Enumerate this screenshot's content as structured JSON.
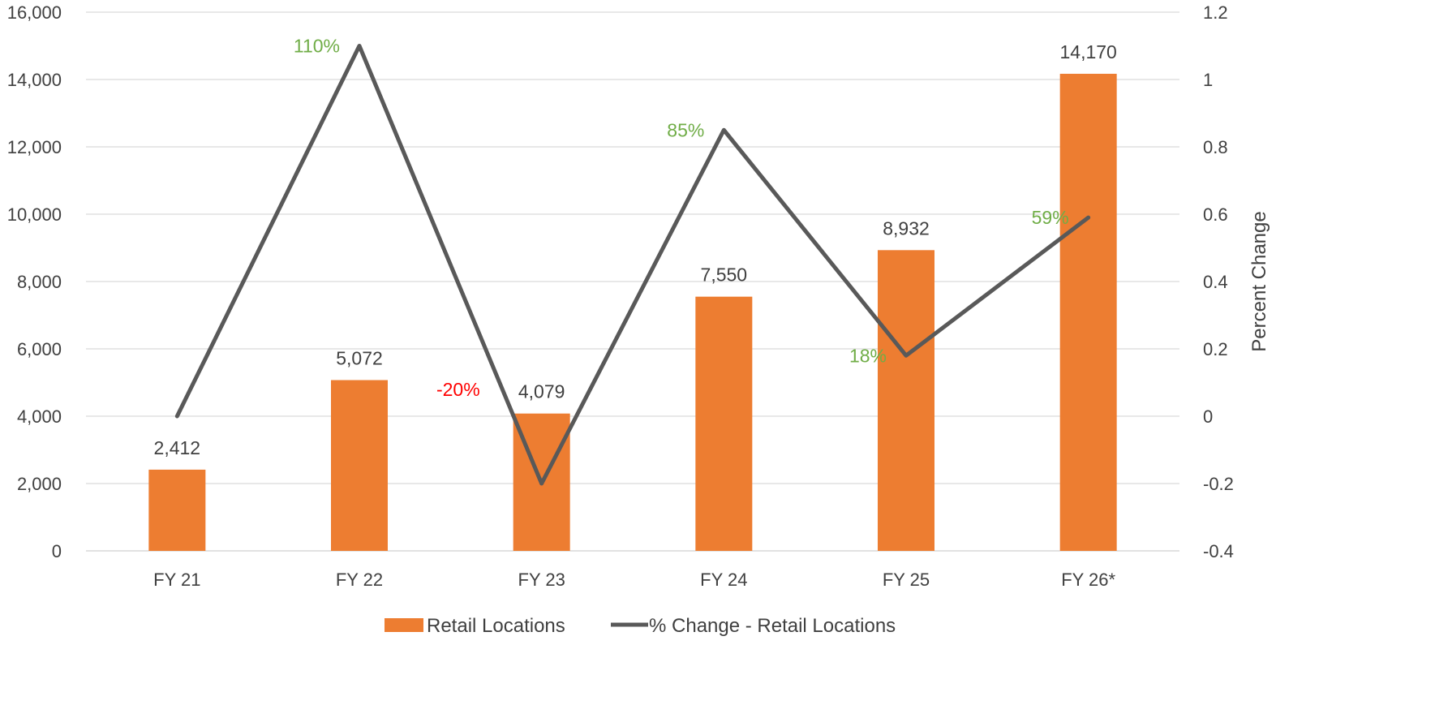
{
  "chart_data": {
    "type": "bar+line",
    "categories": [
      "FY 21",
      "FY 22",
      "FY 23",
      "FY 24",
      "FY 25",
      "FY 26*"
    ],
    "series": [
      {
        "name": "Retail Locations",
        "type": "bar",
        "axis": "left",
        "values": [
          2412,
          5072,
          4079,
          7550,
          8932,
          14170
        ],
        "labels": [
          "2,412",
          "5,072",
          "4,079",
          "7,550",
          "8,932",
          "14,170"
        ],
        "color": "#ED7D31"
      },
      {
        "name": "% Change - Retail Locations",
        "type": "line",
        "axis": "right",
        "values": [
          0,
          1.1,
          -0.2,
          0.85,
          0.18,
          0.59
        ],
        "labels": [
          "",
          "110%",
          "-20%",
          "85%",
          "18%",
          "59%"
        ],
        "label_colors": [
          "",
          "#70AD47",
          "#FF0000",
          "#70AD47",
          "#70AD47",
          "#70AD47"
        ],
        "color": "#595959"
      }
    ],
    "y_left": {
      "range": [
        0,
        16000
      ],
      "ticks": [
        0,
        2000,
        4000,
        6000,
        8000,
        10000,
        12000,
        14000,
        16000
      ],
      "tick_labels": [
        "0",
        "2,000",
        "4,000",
        "6,000",
        "8,000",
        "10,000",
        "12,000",
        "14,000",
        "16,000"
      ],
      "label": ""
    },
    "y_right": {
      "range": [
        -0.4,
        1.2
      ],
      "ticks": [
        -0.4,
        -0.2,
        0,
        0.2,
        0.4,
        0.6,
        0.8,
        1,
        1.2
      ],
      "tick_labels": [
        "-0.4",
        "-0.2",
        "0",
        "0.2",
        "0.4",
        "0.6",
        "0.8",
        "1",
        "1.2"
      ],
      "label": "Percent Change"
    },
    "grid": true,
    "legend_position": "bottom"
  }
}
